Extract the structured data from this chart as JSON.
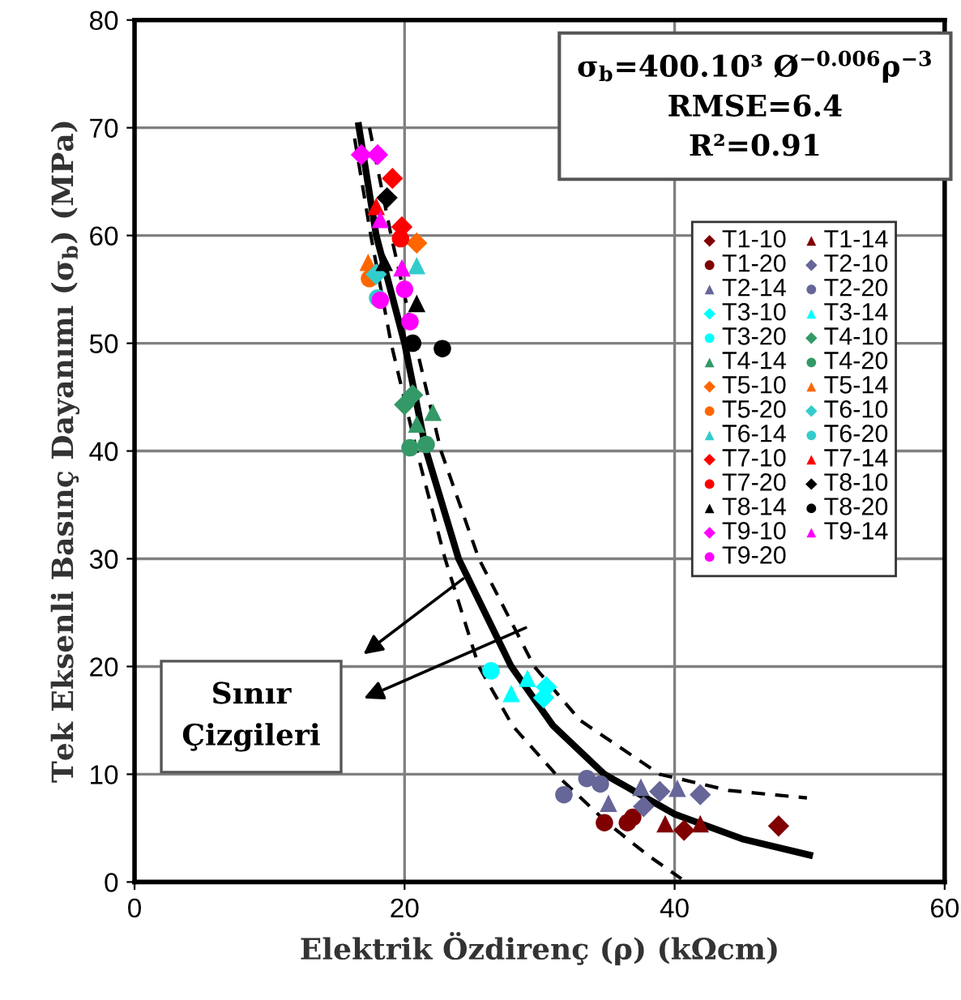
{
  "chart_data": {
    "type": "scatter",
    "xlabel": "Elektrik Özdirenç (ρ) (kΩcm)",
    "ylabel": "Tek Eksenli Basınç Dayanımı (σ$_{b}$) (MPa)",
    "xlim": [
      0,
      60
    ],
    "xticks": [
      0,
      20,
      40,
      60
    ],
    "ylim": [
      0,
      80
    ],
    "yticks": [
      0,
      10,
      20,
      30,
      40,
      50,
      60,
      70,
      80
    ],
    "grid": true,
    "legend": "right",
    "annotations": [
      "σ$_{b}$=400.10³ Ø$^{−0.006}$ρ$^{−3}$\nRMSE=6.4\nR²=0.91",
      "Sınır\nÇizgileri"
    ],
    "series": [
      {
        "name": "T1-10",
        "color": "#800000",
        "marker": "diamond",
        "x": [
          47.7,
          40.7
        ],
        "values": [
          5.2,
          4.8
        ]
      },
      {
        "name": "T1-14",
        "color": "#800000",
        "marker": "triangle",
        "x": [
          39.3,
          41.9
        ],
        "values": [
          5.4,
          5.4
        ]
      },
      {
        "name": "T1-20",
        "color": "#800000",
        "marker": "circle",
        "x": [
          34.8,
          36.5,
          36.9
        ],
        "values": [
          5.5,
          5.5,
          6.0
        ]
      },
      {
        "name": "T2-10",
        "color": "#666699",
        "marker": "diamond",
        "x": [
          37.7,
          38.9,
          41.9
        ],
        "values": [
          7.0,
          8.4,
          8.1
        ]
      },
      {
        "name": "T2-14",
        "color": "#666699",
        "marker": "triangle",
        "x": [
          35.1,
          37.5,
          40.2
        ],
        "values": [
          7.3,
          8.8,
          8.7
        ]
      },
      {
        "name": "T2-20",
        "color": "#666699",
        "marker": "circle",
        "x": [
          31.8,
          33.5,
          34.5
        ],
        "values": [
          8.1,
          9.6,
          9.1
        ]
      },
      {
        "name": "T3-10",
        "color": "#00ffff",
        "marker": "diamond",
        "x": [
          30.5,
          30.3
        ],
        "values": [
          18.1,
          17.1
        ]
      },
      {
        "name": "T3-14",
        "color": "#00ffff",
        "marker": "triangle",
        "x": [
          27.9,
          29.1
        ],
        "values": [
          17.5,
          18.9
        ]
      },
      {
        "name": "T3-20",
        "color": "#00ffff",
        "marker": "circle",
        "x": [
          26.4
        ],
        "values": [
          19.6
        ]
      },
      {
        "name": "T4-10",
        "color": "#339966",
        "marker": "diamond",
        "x": [
          20.0,
          20.6
        ],
        "values": [
          44.3,
          45.2
        ]
      },
      {
        "name": "T4-14",
        "color": "#339966",
        "marker": "triangle",
        "x": [
          22.1,
          20.9
        ],
        "values": [
          43.6,
          42.5
        ]
      },
      {
        "name": "T4-20",
        "color": "#339966",
        "marker": "circle",
        "x": [
          20.4,
          21.6
        ],
        "values": [
          40.3,
          40.6
        ]
      },
      {
        "name": "T5-10",
        "color": "#ff6600",
        "marker": "diamond",
        "x": [
          20.9
        ],
        "values": [
          59.3
        ]
      },
      {
        "name": "T5-14",
        "color": "#ff6600",
        "marker": "triangle",
        "x": [
          17.3
        ],
        "values": [
          57.5
        ]
      },
      {
        "name": "T5-20",
        "color": "#ff6600",
        "marker": "circle",
        "x": [
          17.4
        ],
        "values": [
          56.0
        ]
      },
      {
        "name": "T6-10",
        "color": "#33cccc",
        "marker": "diamond",
        "x": [
          17.9
        ],
        "values": [
          56.4
        ]
      },
      {
        "name": "T6-14",
        "color": "#33cccc",
        "marker": "triangle",
        "x": [
          20.9
        ],
        "values": [
          57.2
        ]
      },
      {
        "name": "T6-20",
        "color": "#33cccc",
        "marker": "circle",
        "x": [
          18.0
        ],
        "values": [
          54.2
        ]
      },
      {
        "name": "T7-10",
        "color": "#ff0000",
        "marker": "diamond",
        "x": [
          19.1,
          19.8
        ],
        "values": [
          65.3,
          60.8
        ]
      },
      {
        "name": "T7-14",
        "color": "#ff0000",
        "marker": "triangle",
        "x": [
          17.9
        ],
        "values": [
          62.7
        ]
      },
      {
        "name": "T7-20",
        "color": "#ff0000",
        "marker": "circle",
        "x": [
          19.7
        ],
        "values": [
          59.7
        ]
      },
      {
        "name": "T8-10",
        "color": "#000000",
        "marker": "diamond",
        "x": [
          18.7
        ],
        "values": [
          63.5
        ]
      },
      {
        "name": "T8-14",
        "color": "#000000",
        "marker": "triangle",
        "x": [
          20.9,
          18.5
        ],
        "values": [
          53.7,
          57.5
        ]
      },
      {
        "name": "T8-20",
        "color": "#000000",
        "marker": "circle",
        "x": [
          22.8,
          20.6
        ],
        "values": [
          49.5,
          50.0
        ]
      },
      {
        "name": "T9-10",
        "color": "#ff00ff",
        "marker": "diamond",
        "x": [
          16.8,
          18.0
        ],
        "values": [
          67.5,
          67.5
        ]
      },
      {
        "name": "T9-14",
        "color": "#ff00ff",
        "marker": "triangle",
        "x": [
          18.2,
          19.8
        ],
        "values": [
          61.5,
          57.0
        ]
      },
      {
        "name": "T9-20",
        "color": "#ff00ff",
        "marker": "circle",
        "x": [
          18.2,
          20.4,
          20.0
        ],
        "values": [
          54.0,
          52.0,
          55.0
        ]
      },
      {
        "type": "line",
        "color": "#000000",
        "line_style": "solid",
        "marker": "none",
        "x": [
          16.6,
          17.9,
          20.0,
          21.6,
          24.0,
          27.9,
          31.0,
          34.8,
          40.0,
          45.0,
          50.0
        ],
        "values": [
          70.2,
          60.0,
          50.0,
          40.0,
          30.0,
          20.0,
          14.5,
          10.0,
          6.3,
          4.0,
          2.5
        ]
      },
      {
        "type": "line",
        "color": "#000000",
        "line_style": "dashed",
        "marker": "none",
        "x": [
          16.3,
          17.5,
          19.0,
          20.9,
          23.0,
          25.5,
          28.0,
          31.2,
          35.0,
          38.0,
          40.5
        ],
        "values": [
          69.0,
          60.0,
          50.0,
          40.0,
          30.0,
          20.0,
          14.5,
          10.0,
          5.5,
          2.5,
          0.3
        ]
      },
      {
        "type": "line",
        "color": "#000000",
        "line_style": "dashed",
        "marker": "none",
        "x": [
          17.4,
          19.0,
          20.8,
          22.7,
          25.5,
          29.6,
          33.0,
          38.9,
          44.0,
          49.8
        ],
        "values": [
          70.0,
          60.0,
          50.0,
          40.0,
          30.0,
          20.0,
          15.0,
          10.0,
          8.5,
          7.8
        ]
      }
    ]
  }
}
